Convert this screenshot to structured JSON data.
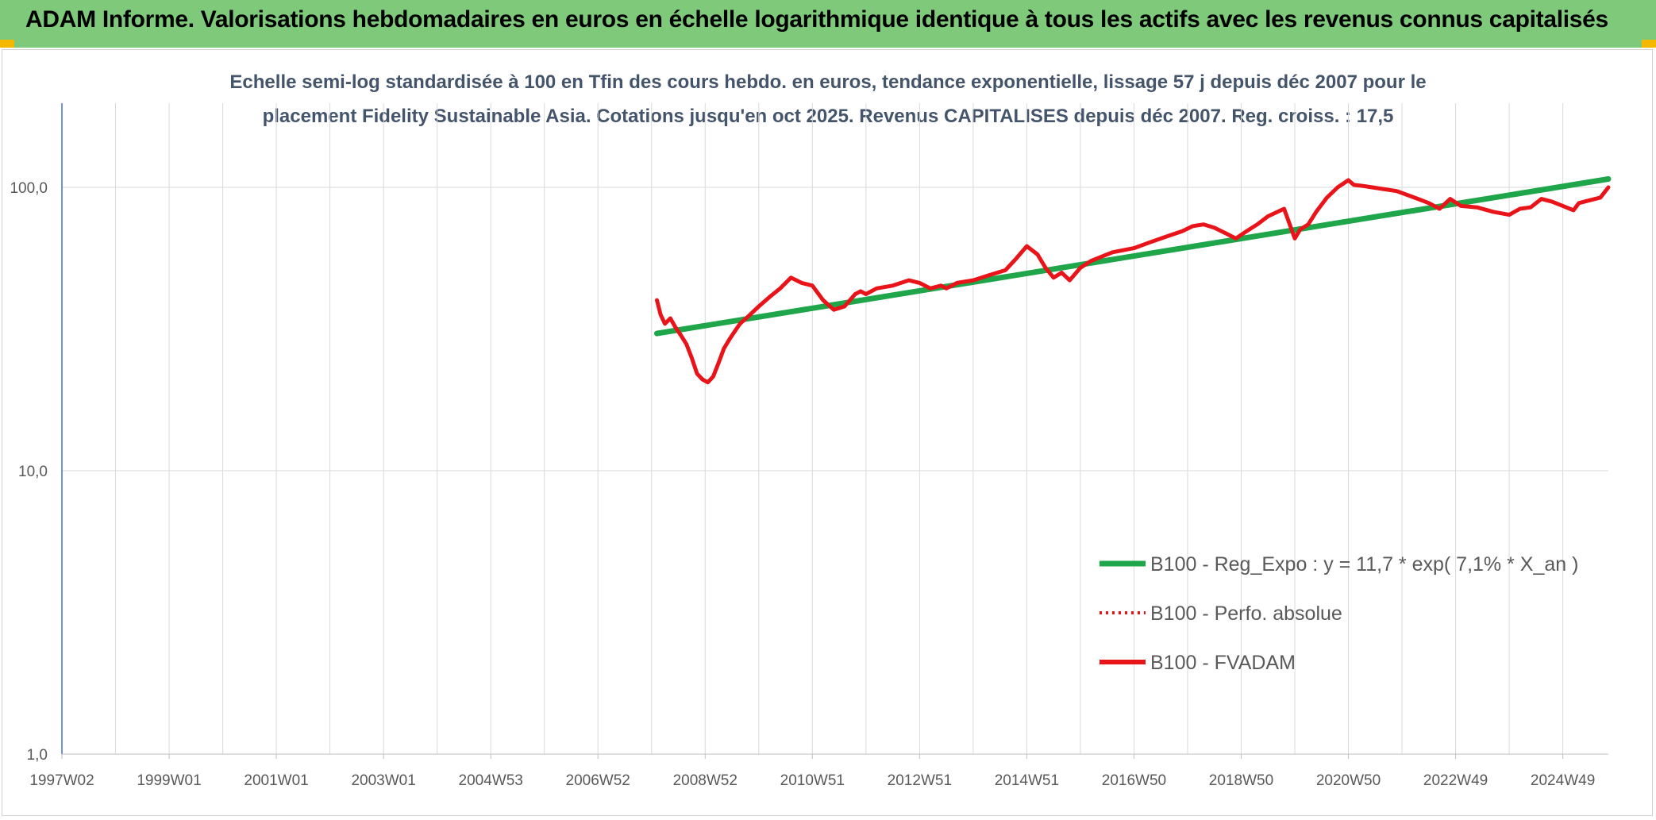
{
  "header": {
    "title": "ADAM Informe. Valorisations hebdomadaires en euros en échelle logarithmique identique à tous les actifs avec les revenus connus capitalisés"
  },
  "colors": {
    "header_bg": "#7ec97a",
    "corner": "#f5b800",
    "trend": "#1fa64a",
    "series": "#e8141a",
    "subtitle": "#44546a",
    "grid": "#d9d9d9",
    "axis": "#4472c4"
  },
  "chart_data": {
    "type": "line",
    "title_line1": "Echelle semi-log standardisée à 100 en Tfin des cours hebdo. en euros, tendance exponentielle, lissage 57 j depuis déc 2007 pour le",
    "title_line2": "placement Fidelity Sustainable Asia. Cotations jusqu'en oct 2025. Revenus CAPITALISES depuis déc 2007. Reg. croiss. : 17,5",
    "y_scale": "log",
    "ylim": [
      1,
      200
    ],
    "xlim": [
      1997.0,
      2025.85
    ],
    "y_ticks": [
      {
        "value": 1,
        "label": "1,0"
      },
      {
        "value": 10,
        "label": "10,0"
      },
      {
        "value": 100,
        "label": "100,0"
      }
    ],
    "x_ticks": [
      {
        "value": 1997.0,
        "label": "1997W02"
      },
      {
        "value": 1999.0,
        "label": "1999W01"
      },
      {
        "value": 2001.0,
        "label": "2001W01"
      },
      {
        "value": 2003.0,
        "label": "2003W01"
      },
      {
        "value": 2005.0,
        "label": "2004W53"
      },
      {
        "value": 2007.0,
        "label": "2006W52"
      },
      {
        "value": 2009.0,
        "label": "2008W52"
      },
      {
        "value": 2011.0,
        "label": "2010W51"
      },
      {
        "value": 2013.0,
        "label": "2012W51"
      },
      {
        "value": 2015.0,
        "label": "2014W51"
      },
      {
        "value": 2017.0,
        "label": "2016W50"
      },
      {
        "value": 2019.0,
        "label": "2018W50"
      },
      {
        "value": 2021.0,
        "label": "2020W50"
      },
      {
        "value": 2023.0,
        "label": "2022W49"
      },
      {
        "value": 2025.0,
        "label": "2024W49"
      }
    ],
    "grid": true,
    "legend_position": "right",
    "series": [
      {
        "name": "B100 - Reg_Expo : y = 11,7 * exp( 7,1% *  X_an )",
        "style": "solid-thick",
        "color": "#1fa64a",
        "x": [
          2008.1,
          2025.85
        ],
        "y": [
          30.5,
          107
        ]
      },
      {
        "name": "B100 - Perfo. absolue",
        "style": "dotted",
        "color": "#e8141a",
        "x": [],
        "y": []
      },
      {
        "name": "B100 - FVADAM",
        "style": "solid",
        "color": "#e8141a",
        "x": [
          2008.1,
          2008.17,
          2008.25,
          2008.35,
          2008.45,
          2008.55,
          2008.65,
          2008.75,
          2008.85,
          2008.95,
          2009.05,
          2009.15,
          2009.25,
          2009.35,
          2009.45,
          2009.55,
          2009.65,
          2009.8,
          2010.0,
          2010.2,
          2010.4,
          2010.6,
          2010.8,
          2011.0,
          2011.2,
          2011.4,
          2011.6,
          2011.7,
          2011.8,
          2011.9,
          2012.0,
          2012.2,
          2012.5,
          2012.8,
          2013.0,
          2013.2,
          2013.4,
          2013.5,
          2013.7,
          2014.0,
          2014.3,
          2014.6,
          2014.8,
          2015.0,
          2015.2,
          2015.35,
          2015.5,
          2015.65,
          2015.8,
          2016.0,
          2016.2,
          2016.4,
          2016.6,
          2016.8,
          2017.0,
          2017.3,
          2017.6,
          2017.9,
          2018.1,
          2018.3,
          2018.5,
          2018.7,
          2018.9,
          2019.1,
          2019.3,
          2019.5,
          2019.8,
          2020.0,
          2020.1,
          2020.25,
          2020.4,
          2020.6,
          2020.8,
          2021.0,
          2021.1,
          2021.3,
          2021.6,
          2021.9,
          2022.1,
          2022.3,
          2022.5,
          2022.7,
          2022.9,
          2023.1,
          2023.4,
          2023.7,
          2024.0,
          2024.2,
          2024.4,
          2024.6,
          2024.8,
          2025.0,
          2025.2,
          2025.3,
          2025.5,
          2025.7,
          2025.85
        ],
        "y": [
          40,
          35.5,
          33,
          34.5,
          32,
          30,
          28,
          25,
          22,
          21,
          20.5,
          21.5,
          24,
          27,
          29,
          31,
          33,
          35,
          38,
          41,
          44,
          48,
          46,
          45,
          40,
          37,
          38,
          40,
          42,
          43,
          42,
          44,
          45,
          47,
          46,
          44,
          45,
          44,
          46,
          47,
          49,
          51,
          56,
          62,
          58,
          52,
          48,
          50,
          47,
          52,
          55,
          57,
          59,
          60,
          61,
          64,
          67,
          70,
          73,
          74,
          72,
          69,
          66,
          70,
          74,
          79,
          84,
          66,
          71,
          74,
          82,
          92,
          100,
          106,
          102,
          101,
          99,
          97,
          94,
          91,
          88,
          84,
          91,
          86,
          85,
          82,
          80,
          84,
          85,
          91,
          89,
          86,
          83,
          88,
          90,
          92,
          100
        ]
      }
    ]
  }
}
